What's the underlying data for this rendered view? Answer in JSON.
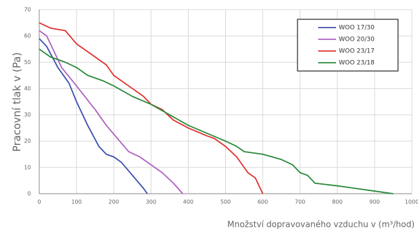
{
  "chart_data": {
    "type": "line",
    "xlabel": "Množství dopravovaného vzduchu v (m³/hod)",
    "ylabel": "Pracovní tlak v (Pa)",
    "xlim": [
      0,
      1000
    ],
    "xticks": [
      0,
      100,
      200,
      300,
      400,
      500,
      600,
      700,
      800,
      900,
      1000
    ],
    "ylim": [
      0,
      70
    ],
    "yticks": [
      0,
      10,
      20,
      30,
      40,
      50,
      60,
      70
    ],
    "grid": true,
    "legend": "upper right",
    "series": [
      {
        "name": "WOO 17/30",
        "color": "#3b4fb0",
        "x": [
          0,
          20,
          50,
          80,
          100,
          130,
          160,
          180,
          200,
          220,
          250,
          280,
          290
        ],
        "values": [
          59,
          56,
          48,
          42,
          35,
          26,
          18,
          15,
          14,
          12,
          7,
          2,
          0
        ]
      },
      {
        "name": "WOO 20/30",
        "color": "#b060c0",
        "x": [
          0,
          20,
          40,
          60,
          100,
          150,
          180,
          210,
          240,
          270,
          300,
          330,
          360,
          385
        ],
        "values": [
          62,
          60,
          54,
          48,
          41,
          32,
          26,
          21,
          16,
          14,
          11,
          8,
          4,
          0
        ]
      },
      {
        "name": "WOO 23/17",
        "color": "#e03030",
        "x": [
          0,
          30,
          70,
          100,
          130,
          180,
          200,
          250,
          280,
          300,
          330,
          360,
          400,
          450,
          470,
          500,
          530,
          560,
          580,
          600
        ],
        "values": [
          65,
          63,
          62,
          57,
          54,
          49,
          45,
          40,
          37,
          34,
          32,
          28,
          25,
          22,
          21,
          18,
          14,
          8,
          6,
          0
        ]
      },
      {
        "name": "WOO 23/18",
        "color": "#2a8a3a",
        "x": [
          0,
          30,
          70,
          100,
          130,
          170,
          200,
          250,
          300,
          350,
          400,
          450,
          500,
          530,
          550,
          600,
          650,
          680,
          700,
          720,
          740,
          800,
          900,
          950
        ],
        "values": [
          55,
          52,
          50,
          48,
          45,
          43,
          41,
          37,
          34,
          30,
          26,
          23,
          20,
          18,
          16,
          15,
          13,
          11,
          8,
          7,
          4,
          3,
          1,
          0
        ]
      }
    ]
  }
}
